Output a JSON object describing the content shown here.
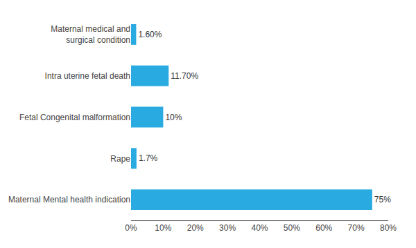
{
  "chart_data": {
    "type": "bar",
    "orientation": "horizontal",
    "categories": [
      "Maternal Mental health indication",
      "Rape",
      "Fetal Congenital malformation",
      "Intra uterine fetal death",
      "Maternal medical and\nsurgical condition"
    ],
    "values": [
      75,
      1.7,
      10,
      11.7,
      1.6
    ],
    "value_labels": [
      "75%",
      "1.7%",
      "10%",
      "11.70%",
      "1.60%"
    ],
    "data_labels": true,
    "color": "#29ABE2",
    "xlim": [
      0,
      80
    ],
    "xticks": [
      {
        "value": 0,
        "label": "0%"
      },
      {
        "value": 10,
        "label": "10%"
      },
      {
        "value": 20,
        "label": "20%"
      },
      {
        "value": 30,
        "label": "30%"
      },
      {
        "value": 40,
        "label": "40%"
      },
      {
        "value": 50,
        "label": "50%"
      },
      {
        "value": 60,
        "label": "60%"
      },
      {
        "value": 70,
        "label": "70%"
      },
      {
        "value": 80,
        "label": "80%"
      }
    ],
    "grid": false
  }
}
